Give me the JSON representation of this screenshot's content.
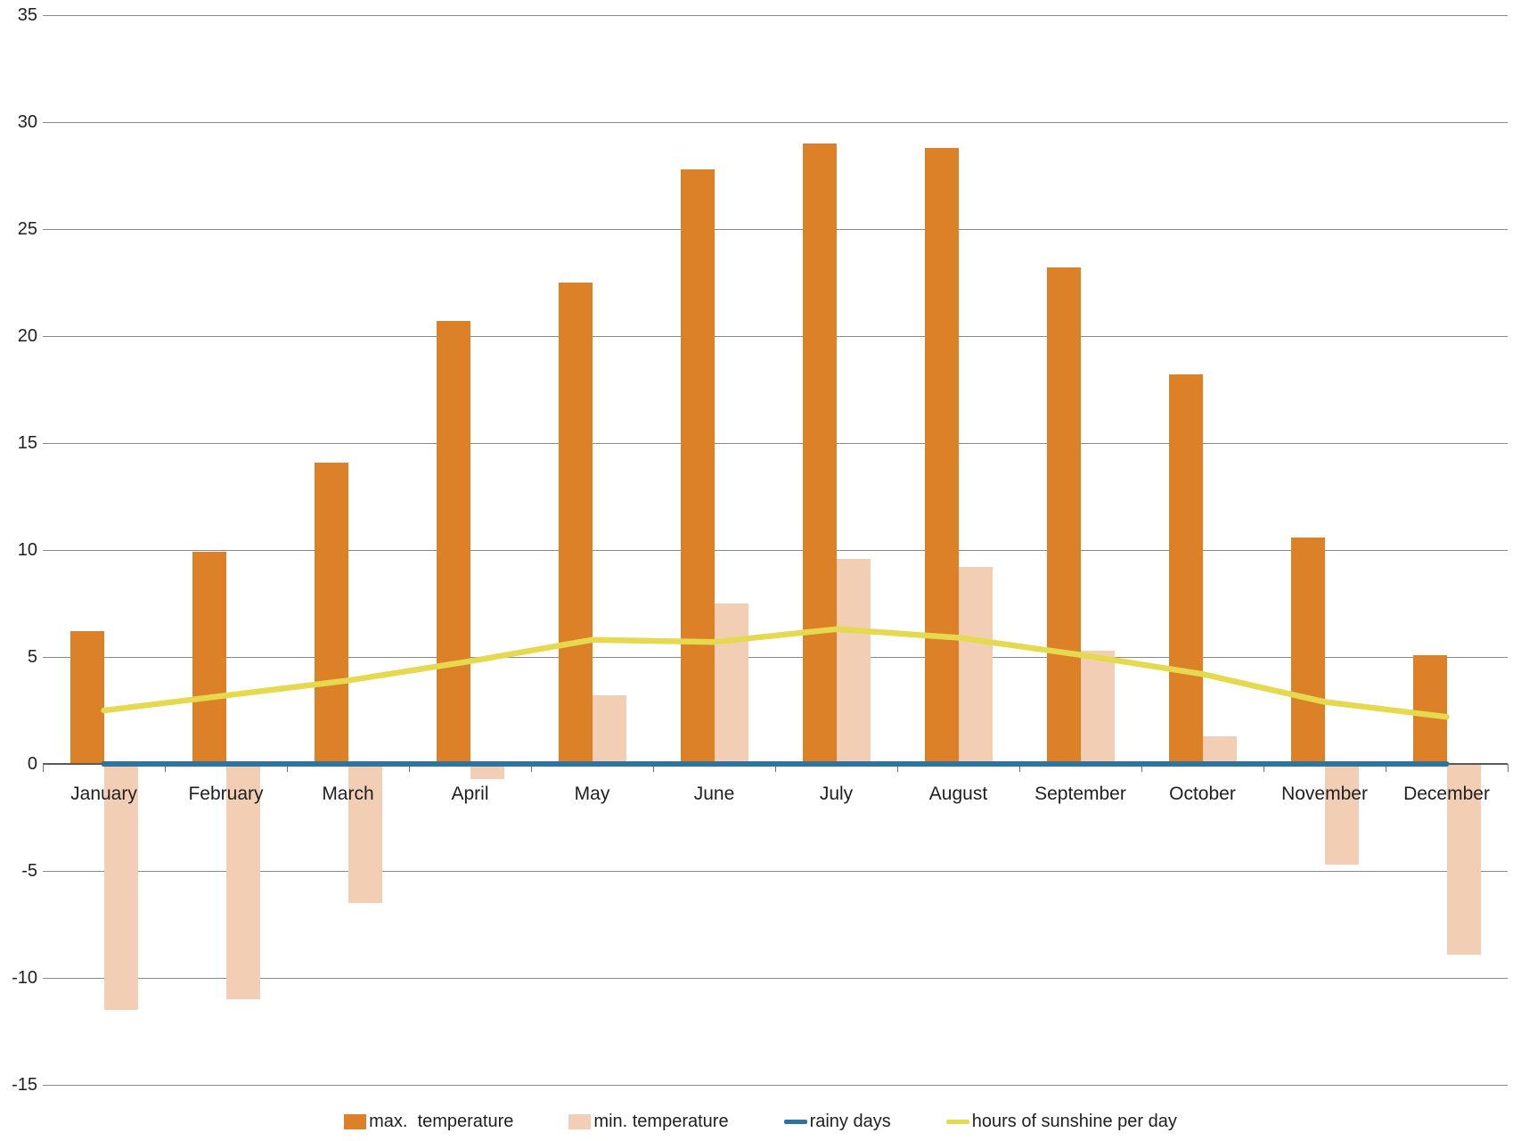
{
  "chart_data": {
    "type": "combo",
    "title": "",
    "xlabel": "",
    "ylabel": "",
    "categories": [
      "January",
      "February",
      "March",
      "April",
      "May",
      "June",
      "July",
      "August",
      "September",
      "October",
      "November",
      "December"
    ],
    "series": [
      {
        "name": "max.  temperature",
        "type": "bar",
        "color": "#DC8127",
        "values": [
          6.2,
          9.9,
          14.1,
          20.7,
          22.5,
          27.8,
          29.0,
          28.8,
          23.2,
          18.2,
          10.6,
          5.1
        ]
      },
      {
        "name": "min. temperature",
        "type": "bar",
        "color": "#F2CFB4",
        "values": [
          -11.5,
          -11.0,
          -6.5,
          -0.7,
          3.2,
          7.5,
          9.6,
          9.2,
          5.3,
          1.3,
          -4.7,
          -8.9
        ]
      },
      {
        "name": "rainy days",
        "type": "line",
        "color": "#30739D",
        "values": [
          0,
          0,
          0,
          0,
          0,
          0,
          0,
          0,
          0,
          0,
          0,
          0
        ]
      },
      {
        "name": "hours of sunshine per day",
        "type": "line",
        "color": "#E5D94F",
        "values": [
          2.5,
          3.2,
          3.9,
          4.8,
          5.8,
          5.7,
          6.3,
          5.9,
          5.1,
          4.2,
          2.9,
          2.2
        ]
      }
    ],
    "ylim": [
      -15,
      35
    ],
    "ytick_step": 5,
    "yticks": [
      35,
      30,
      25,
      20,
      15,
      10,
      5,
      0,
      -5,
      -10,
      -15
    ],
    "grid": true,
    "grid_color": "#8A8A8A",
    "axis_color": "#595959",
    "legend_position": "bottom"
  }
}
